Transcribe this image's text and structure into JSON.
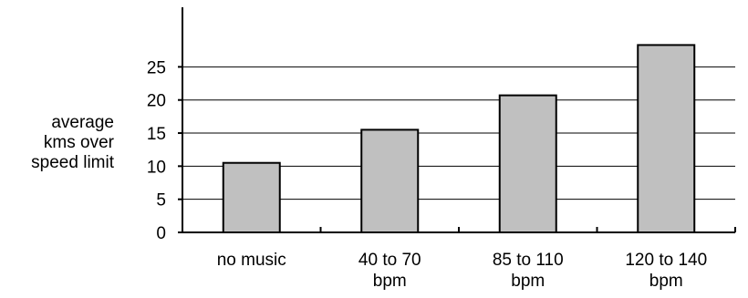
{
  "chart_data": {
    "type": "bar",
    "title": "",
    "xlabel": "",
    "ylabel": [
      "average",
      "kms over",
      "speed limit"
    ],
    "categories": [
      [
        "no music"
      ],
      [
        "40 to 70",
        "bpm"
      ],
      [
        "85 to 110",
        "bpm"
      ],
      [
        "120 to 140",
        "bpm"
      ]
    ],
    "values": [
      10.5,
      15.5,
      20.7,
      28.3
    ],
    "yticks": [
      "0",
      "5",
      "10",
      "15",
      "20",
      "25"
    ],
    "ytick_values": [
      0,
      5,
      10,
      15,
      20,
      25
    ],
    "ylim": [
      0,
      34
    ],
    "grid": true,
    "legend": "none",
    "colors": {
      "bar_fill": "#c0c0c0",
      "bar_stroke": "#000000",
      "grid": "#000000",
      "axis": "#000000"
    }
  }
}
